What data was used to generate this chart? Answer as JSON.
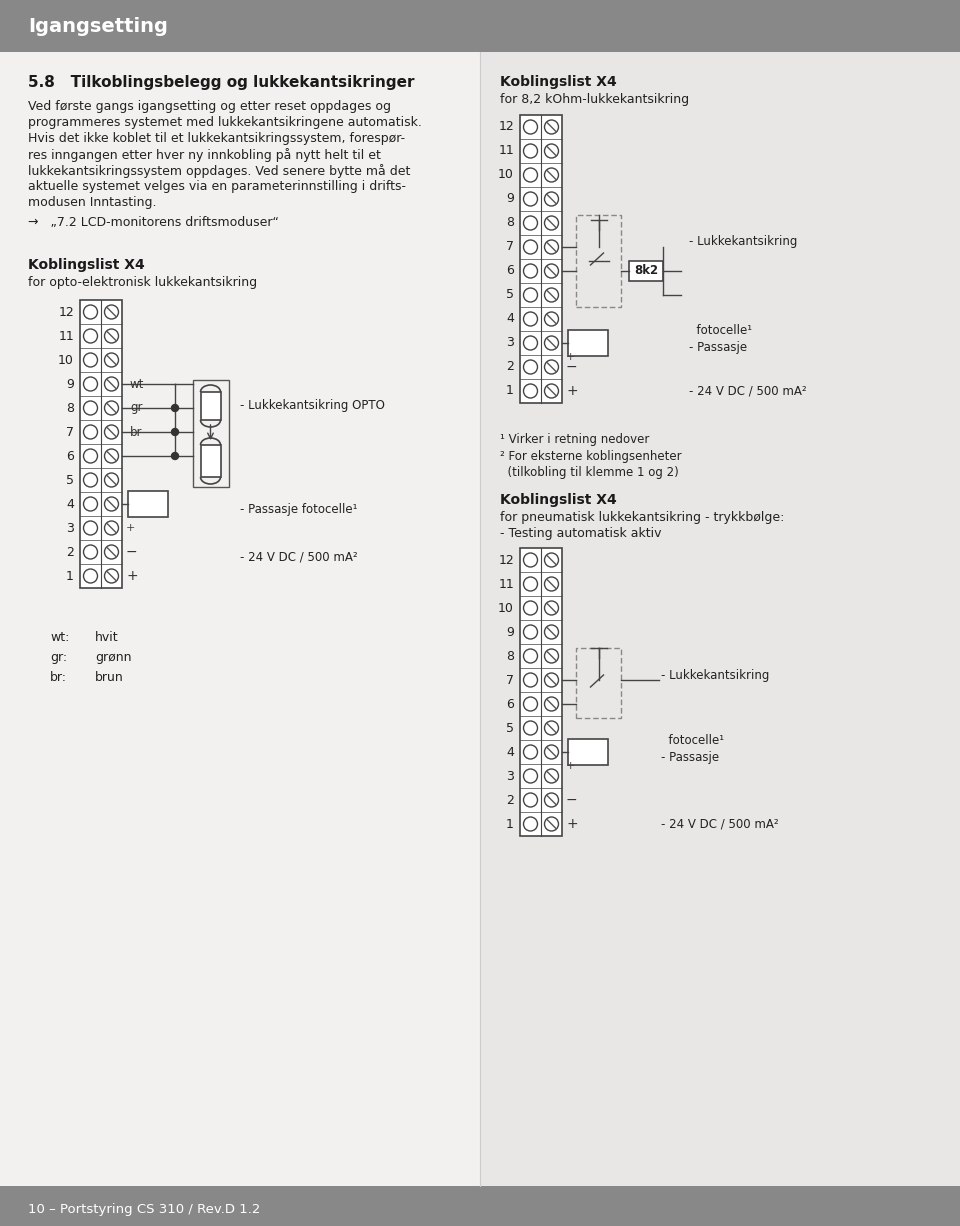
{
  "header_bg": "#888888",
  "header_text": "Igangsetting",
  "header_text_color": "#ffffff",
  "footer_bg": "#888888",
  "footer_text": "10 – Portstyring CS 310 / Rev.D 1.2",
  "footer_text_color": "#ffffff",
  "body_bg": "#f2f1ef",
  "right_col_bg": "#e8e7e5",
  "title_left": "5.8   Tilkoblingsbelegg og lukkekantsikringer",
  "title_right_bold": "Koblingslist X4",
  "title_right_sub": "for 8,2 kOhm-lukkekantsikring",
  "para1_lines": [
    "Ved første gangs igangsetting og etter reset oppdages og",
    "programmeres systemet med lukkekantsikringene automatisk.",
    "Hvis det ikke koblet til et lukkekantsikringssystem, forespør-",
    "res inngangen etter hver ny innkobling på nytt helt til et",
    "lukkekantsikringssystem oppdages. Ved senere bytte må det",
    "aktuelle systemet velges via en parameterinnstilling i drifts-",
    "modusen Inntasting."
  ],
  "arrow_text": "→   „7.2 LCD-monitorens driftsmoduser“",
  "kbl_left_bold": "Koblingslist X4",
  "kbl_left_sub": "for opto-elektronisk lukkekantsikring",
  "opto_label": "- Lukkekantsikring OPTO",
  "pass_label1": "- Passasje fotocelle¹",
  "dc_label1": "- 24 V DC / 500 mA²",
  "wt_label": "wt:",
  "wt_val": "hvit",
  "gr_label": "gr:",
  "gr_val": "grønn",
  "br_label": "br:",
  "br_val": "brun",
  "kbl_right1_bold": "Koblingslist X4",
  "kbl_right1_sub": "for 8,2 kOhm-lukkekantsikring",
  "luk_label1": "- Lukkekantsikring",
  "pass_label_r1a": "- Passasje",
  "pass_label_r1b": "  fotocelle¹",
  "dc_label_r1": "- 24 V DC / 500 mA²",
  "note1": "¹ Virker i retning nedover",
  "note2": "² For eksterne koblingsenheter",
  "note3": "  (tilkobling til klemme 1 og 2)",
  "kbl_right2_bold": "Koblingslist X4",
  "kbl_right2_sub": "for pneumatisk lukkekantsikring - trykkbølge:",
  "kbl_right2_sub2": "- Testing automatisk aktiv",
  "luk_label2": "- Lukkekantsikring",
  "pass_label_r2a": "- Passasje",
  "pass_label_r2b": "  fotocelle¹",
  "dc_label_r2": "- 24 V DC / 500 mA²"
}
